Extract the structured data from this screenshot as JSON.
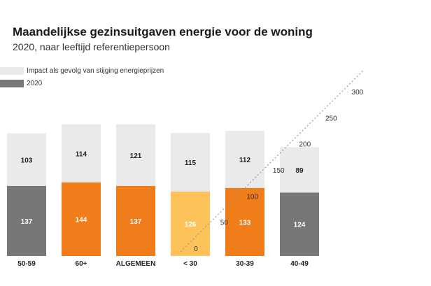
{
  "title": "Maandelijkse gezinsuitgaven energie voor de woning",
  "subtitle": "2020, naar leeftijd referentiepersoon",
  "chart_data": {
    "type": "bar",
    "stacked": true,
    "title": "Maandelijkse gezinsuitgaven energie voor de woning",
    "subtitle": "2020, naar leeftijd referentiepersoon",
    "legend_placement": "top-left",
    "categories": [
      "50-59",
      "60+",
      "ALGEMEEN",
      "< 30",
      "30-39",
      "40-49"
    ],
    "series": [
      {
        "name": "2020",
        "values": [
          137,
          144,
          137,
          126,
          133,
          124
        ]
      },
      {
        "name": "Impact als gevolg van stijging energieprijzen",
        "values": [
          103,
          114,
          121,
          115,
          112,
          89
        ]
      }
    ],
    "axis_ticks": [
      "0",
      "50",
      "100",
      "150",
      "200",
      "250",
      "300"
    ],
    "ylim": [
      0,
      300
    ],
    "colors": {
      "base": "#777777",
      "impact": "#eaeaea",
      "highlight": "#f07d1a",
      "highlight_light": "#fdc35a",
      "text": "#222222"
    }
  }
}
